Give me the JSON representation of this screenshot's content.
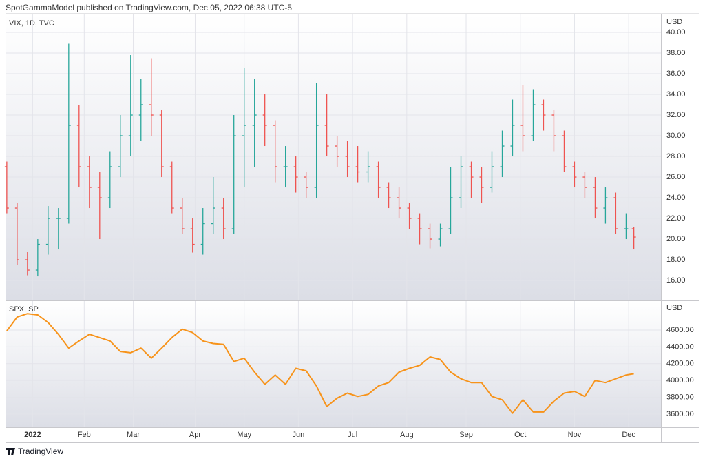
{
  "header": {
    "title": "SpotGammaModel published on TradingView.com, Dec 05, 2022 06:38 UTC-5"
  },
  "footer": {
    "brand": "TradingView"
  },
  "chart_data": [
    {
      "type": "ohlc",
      "title": "VIX, 1D, TVC",
      "axis_label": "USD",
      "up_color": "#26a69a",
      "down_color": "#ef5350",
      "grid": true,
      "x": [
        -10,
        -6,
        -2,
        2,
        6,
        10,
        14,
        18,
        22,
        26,
        30,
        34,
        38,
        42,
        46,
        50,
        54,
        58,
        62,
        66,
        70,
        74,
        78,
        82,
        86,
        90,
        94,
        98,
        102,
        106,
        110,
        114,
        118,
        122,
        126,
        130,
        134,
        138,
        142,
        146,
        150,
        154,
        158,
        162,
        166,
        170,
        174,
        178,
        182,
        186,
        190,
        194,
        198,
        202,
        206,
        210,
        214,
        218,
        222,
        226,
        230,
        233
      ],
      "open": [
        27,
        23,
        18,
        17,
        19.5,
        22,
        22,
        31,
        27,
        25,
        24,
        27,
        30,
        32,
        33,
        32,
        27,
        23,
        21,
        19.5,
        21.5,
        23,
        21,
        30,
        31,
        32,
        31,
        27,
        27,
        26,
        25,
        31,
        29,
        28,
        27,
        26.5,
        27,
        25,
        24,
        23,
        22,
        21,
        20,
        21,
        24,
        27,
        26,
        25,
        27,
        29,
        31,
        30,
        33,
        32,
        30,
        27,
        26,
        25,
        23,
        24,
        21,
        21
      ],
      "high": [
        27.5,
        23.5,
        18.8,
        20,
        23.2,
        23,
        38.9,
        33,
        28,
        26.5,
        28.5,
        32,
        37.8,
        35.5,
        37.5,
        32.5,
        27.5,
        24,
        22,
        23,
        26,
        24,
        32,
        36.6,
        35.5,
        34,
        31.5,
        29,
        28,
        26.5,
        35.1,
        34,
        30,
        29.5,
        29,
        28.5,
        27.5,
        25.5,
        25,
        23.5,
        22.5,
        21.5,
        21.5,
        27,
        28,
        27.5,
        27,
        28.5,
        30.5,
        33.5,
        34.9,
        34.5,
        33.5,
        32.5,
        30.5,
        27.5,
        26.5,
        26,
        25,
        24.5,
        22.5,
        21.2
      ],
      "low": [
        22.5,
        17.5,
        16.5,
        16.4,
        18.5,
        19,
        21.5,
        25,
        23,
        20,
        23,
        26,
        28,
        29.5,
        30,
        26,
        22.5,
        20.5,
        18.7,
        18.5,
        20.5,
        20,
        20.5,
        25,
        27,
        29,
        25.5,
        25,
        24.5,
        24,
        24,
        28,
        27,
        26,
        25.5,
        25.5,
        24,
        23,
        22,
        21,
        19.5,
        19.1,
        19.3,
        20.5,
        23,
        24,
        23.5,
        24.5,
        26,
        28,
        28.5,
        29.5,
        30.5,
        28.5,
        26.5,
        25,
        24,
        22,
        21.5,
        20.5,
        20,
        19
      ],
      "close": [
        23,
        18,
        17,
        19.5,
        22,
        22,
        31,
        27,
        25,
        24,
        27,
        30,
        32,
        33,
        32,
        27,
        23,
        21,
        19.5,
        21.5,
        23,
        21,
        30,
        31,
        32,
        31,
        27,
        27,
        26,
        25,
        31,
        29,
        28,
        27,
        26.5,
        27,
        25,
        24,
        23,
        22,
        21,
        20,
        21,
        24,
        27,
        26,
        25,
        27,
        29,
        31,
        30,
        33,
        32,
        30,
        27,
        26,
        25,
        23,
        24,
        21,
        21,
        20.2
      ],
      "xlim": [
        -10.5,
        243.5
      ],
      "ylim": [
        14.07,
        41.8
      ],
      "yticks": [
        {
          "value": 16,
          "label": "16.00"
        },
        {
          "value": 18,
          "label": "18.00"
        },
        {
          "value": 20,
          "label": "20.00"
        },
        {
          "value": 22,
          "label": "22.00"
        },
        {
          "value": 24,
          "label": "24.00"
        },
        {
          "value": 26,
          "label": "26.00"
        },
        {
          "value": 28,
          "label": "28.00"
        },
        {
          "value": 30,
          "label": "30.00"
        },
        {
          "value": 32,
          "label": "32.00"
        },
        {
          "value": 34,
          "label": "34.00"
        },
        {
          "value": 36,
          "label": "36.00"
        },
        {
          "value": 38,
          "label": "38.00"
        },
        {
          "value": 40,
          "label": "40.00"
        }
      ]
    },
    {
      "type": "line",
      "title": "SPX, SP",
      "axis_label": "USD",
      "color": "#f7931a",
      "grid": true,
      "x": [
        -10,
        -6,
        -2,
        2,
        6,
        10,
        14,
        18,
        22,
        26,
        30,
        34,
        38,
        42,
        46,
        50,
        54,
        58,
        62,
        66,
        70,
        74,
        78,
        82,
        86,
        90,
        94,
        98,
        102,
        106,
        110,
        114,
        118,
        122,
        126,
        130,
        134,
        138,
        142,
        146,
        150,
        154,
        158,
        162,
        166,
        170,
        174,
        178,
        182,
        186,
        190,
        194,
        198,
        202,
        206,
        210,
        214,
        218,
        222,
        226,
        230,
        233
      ],
      "values": [
        4590,
        4755,
        4795,
        4780,
        4690,
        4550,
        4385,
        4470,
        4550,
        4510,
        4470,
        4345,
        4330,
        4385,
        4265,
        4385,
        4510,
        4610,
        4570,
        4470,
        4440,
        4430,
        4225,
        4265,
        4100,
        3955,
        4065,
        3955,
        4145,
        4115,
        3935,
        3690,
        3790,
        3850,
        3810,
        3835,
        3935,
        3975,
        4100,
        4145,
        4180,
        4280,
        4250,
        4100,
        4020,
        3975,
        3975,
        3810,
        3770,
        3610,
        3770,
        3625,
        3625,
        3755,
        3850,
        3870,
        3810,
        4000,
        3975,
        4020,
        4065,
        4080
      ],
      "xlim": [
        -10.5,
        243.5
      ],
      "ylim": [
        3444,
        4944
      ],
      "yticks": [
        {
          "value": 3600,
          "label": "3600.00"
        },
        {
          "value": 3800,
          "label": "3800.00"
        },
        {
          "value": 4000,
          "label": "4000.00"
        },
        {
          "value": 4200,
          "label": "4200.00"
        },
        {
          "value": 4400,
          "label": "4400.00"
        },
        {
          "value": 4600,
          "label": "4600.00"
        }
      ],
      "xticks": [
        {
          "value": 0,
          "label": "2022"
        },
        {
          "value": 20,
          "label": "Feb"
        },
        {
          "value": 39,
          "label": "Mar"
        },
        {
          "value": 63,
          "label": "Apr"
        },
        {
          "value": 82,
          "label": "May"
        },
        {
          "value": 103,
          "label": "Jun"
        },
        {
          "value": 124,
          "label": "Jul"
        },
        {
          "value": 145,
          "label": "Aug"
        },
        {
          "value": 168,
          "label": "Sep"
        },
        {
          "value": 189,
          "label": "Oct"
        },
        {
          "value": 210,
          "label": "Nov"
        },
        {
          "value": 231,
          "label": "Dec"
        }
      ]
    }
  ]
}
